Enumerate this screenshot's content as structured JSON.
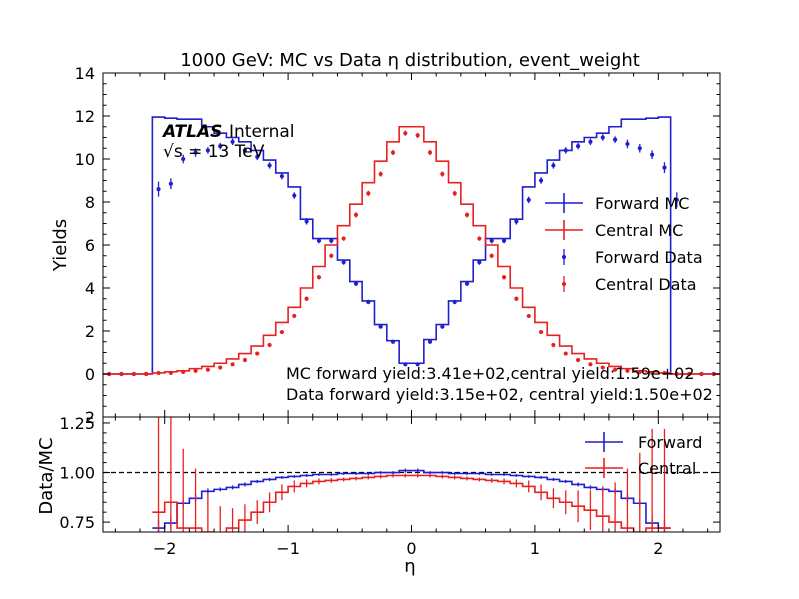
{
  "chart_data": [
    {
      "type": "line",
      "title": "1000 GeV: MC vs Data η distribution, event_weight",
      "xlabel": "η",
      "ylabel": "Yields",
      "xlim": [
        -2.5,
        2.5
      ],
      "ylim": [
        -2,
        14
      ],
      "yticks": [
        0,
        2,
        4,
        6,
        8,
        10,
        12,
        14
      ],
      "xticks": [
        -2,
        -1,
        0,
        1,
        2
      ],
      "grid": false,
      "legend": "right",
      "atlas_label": "ATLAS",
      "atlas_sub": "Internal",
      "energy_label": "√s = 13 TeV",
      "annotations": [
        "MC forward yield:3.41e+02,central yield:1.59e+02",
        "Data forward yield:3.15e+02, central yield:1.50e+02"
      ],
      "bin_edges": [
        -2.5,
        -2.4,
        -2.3,
        -2.2,
        -2.1,
        -2.0,
        -1.9,
        -1.8,
        -1.7,
        -1.6,
        -1.5,
        -1.4,
        -1.3,
        -1.2,
        -1.1,
        -1.0,
        -0.9,
        -0.8,
        -0.7,
        -0.6,
        -0.5,
        -0.4,
        -0.3,
        -0.2,
        -0.1,
        0.0,
        0.1,
        0.2,
        0.3,
        0.4,
        0.5,
        0.6,
        0.7,
        0.8,
        0.9,
        1.0,
        1.1,
        1.2,
        1.3,
        1.4,
        1.5,
        1.6,
        1.7,
        1.8,
        1.9,
        2.0,
        2.1,
        2.2,
        2.3,
        2.4,
        2.5
      ],
      "series": [
        {
          "name": "Forward MC",
          "kind": "step",
          "color": "#1f1fcf",
          "values": [
            0,
            0,
            0,
            0,
            11.95,
            11.9,
            11.85,
            11.85,
            11.5,
            11.2,
            11.0,
            10.8,
            10.4,
            9.95,
            9.35,
            8.7,
            7.2,
            6.3,
            6.3,
            5.3,
            4.3,
            3.4,
            2.3,
            1.55,
            0.5,
            0.5,
            1.6,
            2.3,
            3.4,
            4.3,
            5.3,
            6.3,
            6.3,
            7.2,
            8.7,
            9.35,
            9.95,
            10.4,
            10.8,
            11.0,
            11.2,
            11.5,
            11.85,
            11.85,
            11.9,
            11.95,
            0,
            0,
            0,
            0
          ]
        },
        {
          "name": "Central MC",
          "kind": "step",
          "color": "#e82020",
          "values": [
            0,
            0,
            0,
            0,
            0.05,
            0.1,
            0.15,
            0.25,
            0.35,
            0.5,
            0.7,
            0.95,
            1.3,
            1.8,
            2.4,
            3.1,
            4.0,
            5.0,
            6.0,
            6.9,
            7.9,
            8.9,
            9.9,
            10.8,
            11.5,
            11.5,
            10.8,
            9.9,
            8.9,
            7.9,
            6.9,
            6.0,
            5.0,
            4.0,
            3.1,
            2.4,
            1.8,
            1.3,
            0.95,
            0.7,
            0.5,
            0.35,
            0.25,
            0.15,
            0.1,
            0.05,
            0,
            0,
            0,
            0
          ]
        },
        {
          "name": "Forward Data",
          "kind": "points",
          "color": "#1f1fcf",
          "values": [
            0,
            0,
            0,
            0,
            8.6,
            8.85,
            10.0,
            10.3,
            10.4,
            10.6,
            10.8,
            10.4,
            10.1,
            9.7,
            9.2,
            8.3,
            7.1,
            6.2,
            6.2,
            5.2,
            4.2,
            3.35,
            2.2,
            1.5,
            0.45,
            0.45,
            1.5,
            2.2,
            3.35,
            4.2,
            5.2,
            6.2,
            6.2,
            7.1,
            8.1,
            9.0,
            9.7,
            10.4,
            10.6,
            10.8,
            11.0,
            10.9,
            10.7,
            10.5,
            10.2,
            9.6,
            8.1,
            0,
            0,
            0
          ],
          "errors": [
            0,
            0,
            0,
            0,
            0.35,
            0.25,
            0.2,
            0.2,
            0.15,
            0.15,
            0.15,
            0.15,
            0.15,
            0.15,
            0.15,
            0.15,
            0.15,
            0.12,
            0.12,
            0.12,
            0.1,
            0.1,
            0.08,
            0.06,
            0.04,
            0.04,
            0.06,
            0.08,
            0.1,
            0.1,
            0.12,
            0.12,
            0.12,
            0.15,
            0.15,
            0.15,
            0.15,
            0.15,
            0.15,
            0.15,
            0.15,
            0.15,
            0.2,
            0.2,
            0.2,
            0.25,
            0.35,
            0,
            0,
            0
          ]
        },
        {
          "name": "Central Data",
          "kind": "points",
          "color": "#e82020",
          "values": [
            0,
            0,
            0,
            0,
            0.05,
            0.05,
            0.1,
            0.15,
            0.2,
            0.3,
            0.45,
            0.65,
            0.95,
            1.35,
            1.95,
            2.7,
            3.5,
            4.5,
            5.5,
            6.3,
            7.4,
            8.4,
            9.3,
            10.3,
            11.2,
            11.1,
            10.3,
            9.3,
            8.4,
            7.4,
            6.3,
            5.5,
            4.5,
            3.5,
            2.7,
            1.95,
            1.35,
            0.95,
            0.65,
            0.45,
            0.3,
            0.2,
            0.15,
            0.1,
            0.05,
            0.05,
            0,
            0,
            0,
            0
          ],
          "errors": [
            0,
            0,
            0,
            0,
            0.02,
            0.02,
            0.03,
            0.03,
            0.04,
            0.05,
            0.05,
            0.06,
            0.06,
            0.07,
            0.08,
            0.09,
            0.1,
            0.1,
            0.1,
            0.1,
            0.12,
            0.12,
            0.12,
            0.12,
            0.12,
            0.12,
            0.12,
            0.12,
            0.12,
            0.12,
            0.1,
            0.1,
            0.1,
            0.1,
            0.09,
            0.08,
            0.07,
            0.06,
            0.06,
            0.05,
            0.05,
            0.04,
            0.03,
            0.03,
            0.02,
            0.02,
            0,
            0,
            0,
            0
          ]
        }
      ]
    },
    {
      "type": "line",
      "xlabel": "η",
      "ylabel": "Data/MC",
      "xlim": [
        -2.5,
        2.5
      ],
      "ylim": [
        0.7,
        1.28
      ],
      "yticks": [
        0.75,
        1.0,
        1.25
      ],
      "ytick_labels": [
        "0.75",
        "1.00",
        "1.25"
      ],
      "xticks": [
        -2,
        -1,
        0,
        1,
        2
      ],
      "reference_line": 1.0,
      "legend": "top-right",
      "series": [
        {
          "name": "Forward",
          "color": "#1f1fcf",
          "values": [
            null,
            null,
            null,
            null,
            0.72,
            0.745,
            0.845,
            0.87,
            0.905,
            0.915,
            0.925,
            0.94,
            0.955,
            0.965,
            0.975,
            0.98,
            0.985,
            0.99,
            0.99,
            0.995,
            0.995,
            0.995,
            1.0,
            1.0,
            1.01,
            1.01,
            1.0,
            1.0,
            0.995,
            0.995,
            0.995,
            0.99,
            0.99,
            0.985,
            0.98,
            0.975,
            0.965,
            0.955,
            0.94,
            0.925,
            0.915,
            0.905,
            0.87,
            0.845,
            0.745,
            0.72,
            null,
            null,
            null,
            null
          ],
          "errors": [
            0,
            0,
            0,
            0,
            0.04,
            0.03,
            0.02,
            0.02,
            0.015,
            0.01,
            0.01,
            0.01,
            0.008,
            0.008,
            0.007,
            0.007,
            0.007,
            0.007,
            0.007,
            0.007,
            0.007,
            0.007,
            0.007,
            0.007,
            0.01,
            0.01,
            0.007,
            0.007,
            0.007,
            0.007,
            0.007,
            0.007,
            0.007,
            0.007,
            0.007,
            0.007,
            0.008,
            0.008,
            0.01,
            0.01,
            0.01,
            0.015,
            0.02,
            0.02,
            0.03,
            0.04,
            0,
            0,
            0,
            0
          ]
        },
        {
          "name": "Central",
          "color": "#e82020",
          "values": [
            null,
            null,
            null,
            null,
            0.8,
            0.85,
            0.72,
            0.72,
            0.7,
            0.68,
            0.72,
            0.76,
            0.8,
            0.85,
            0.9,
            0.93,
            0.945,
            0.955,
            0.96,
            0.965,
            0.97,
            0.975,
            0.98,
            0.985,
            0.985,
            0.985,
            0.985,
            0.98,
            0.975,
            0.97,
            0.965,
            0.96,
            0.955,
            0.945,
            0.93,
            0.9,
            0.87,
            0.85,
            0.83,
            0.81,
            0.78,
            0.75,
            0.72,
            0.7,
            0.72,
            0.72,
            null,
            null,
            null,
            null
          ],
          "errors": [
            0,
            0,
            0,
            0,
            0.5,
            0.5,
            0.4,
            0.3,
            0.2,
            0.15,
            0.1,
            0.08,
            0.06,
            0.05,
            0.04,
            0.03,
            0.02,
            0.015,
            0.012,
            0.01,
            0.01,
            0.01,
            0.01,
            0.01,
            0.01,
            0.01,
            0.01,
            0.01,
            0.01,
            0.01,
            0.01,
            0.012,
            0.015,
            0.02,
            0.03,
            0.04,
            0.05,
            0.06,
            0.08,
            0.1,
            0.15,
            0.2,
            0.3,
            0.4,
            0.5,
            0.5,
            0,
            0,
            0,
            0
          ]
        }
      ]
    }
  ]
}
